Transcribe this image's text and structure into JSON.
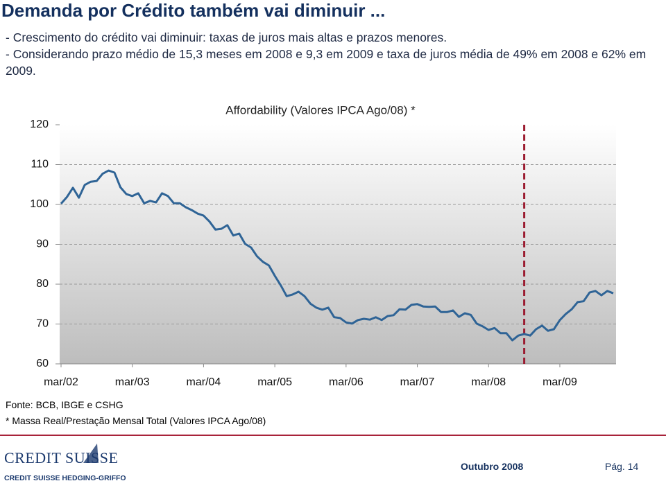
{
  "header": {
    "title": "Demanda por Crédito também vai diminuir ..."
  },
  "bullets": [
    "- Crescimento do crédito vai diminuir: taxas de juros mais altas e prazos menores.",
    "- Considerando prazo médio de 15,3 meses em 2008 e 9,3 em 2009 e taxa de juros média de 49% em 2008 e 62% em 2009."
  ],
  "chart_data": {
    "type": "line",
    "title": "Affordability (Valores IPCA Ago/08) *",
    "categories": [
      "mar/02",
      null,
      null,
      null,
      null,
      null,
      null,
      null,
      null,
      null,
      null,
      null,
      "mar/03",
      null,
      null,
      null,
      null,
      null,
      null,
      null,
      null,
      null,
      null,
      null,
      "mar/04",
      null,
      null,
      null,
      null,
      null,
      null,
      null,
      null,
      null,
      null,
      null,
      "mar/05",
      null,
      null,
      null,
      null,
      null,
      null,
      null,
      null,
      null,
      null,
      null,
      "mar/06",
      null,
      null,
      null,
      null,
      null,
      null,
      null,
      null,
      null,
      null,
      null,
      "mar/07",
      null,
      null,
      null,
      null,
      null,
      null,
      null,
      null,
      null,
      null,
      null,
      "mar/08",
      null,
      null,
      null,
      null,
      null,
      null,
      null,
      null,
      null,
      null,
      null,
      "mar/09",
      null,
      null,
      null,
      null,
      null,
      null,
      null,
      null,
      null
    ],
    "series": [
      {
        "name": "Affordability",
        "color": "#2f6496",
        "values": [
          100.2,
          101.9,
          104.2,
          101.7,
          104.9,
          105.7,
          105.9,
          107.7,
          108.5,
          108.0,
          104.3,
          102.6,
          102.1,
          102.8,
          100.3,
          100.9,
          100.5,
          102.8,
          102.1,
          100.3,
          100.3,
          99.3,
          98.6,
          97.7,
          97.2,
          95.7,
          93.7,
          93.9,
          94.8,
          92.2,
          92.7,
          90.1,
          89.2,
          87.0,
          85.6,
          84.7,
          82.1,
          79.7,
          77.0,
          77.4,
          78.1,
          77.0,
          75.1,
          74.1,
          73.6,
          74.1,
          71.7,
          71.5,
          70.4,
          70.1,
          71.0,
          71.3,
          71.1,
          71.7,
          71.0,
          72.0,
          72.2,
          73.7,
          73.6,
          74.8,
          75.0,
          74.4,
          74.3,
          74.4,
          73.0,
          73.0,
          73.4,
          71.8,
          72.7,
          72.3,
          70.1,
          69.4,
          68.5,
          69.0,
          67.7,
          67.7,
          65.9,
          67.1,
          67.5,
          67.1,
          68.7,
          69.6,
          68.3,
          68.7,
          71.0,
          72.5,
          73.7,
          75.5,
          75.7,
          77.9,
          78.3,
          77.2,
          78.3,
          77.7
        ]
      }
    ],
    "ylim": [
      60,
      120
    ],
    "yticks": [
      60,
      70,
      80,
      90,
      100,
      110,
      120
    ],
    "grid": true,
    "marker_index": 78,
    "marker_color": "#9b1b30"
  },
  "notes": {
    "source": "Fonte: BCB, IBGE e CSHG",
    "footnote": "* Massa Real/Prestação Mensal Total (Valores IPCA Ago/08)"
  },
  "footer": {
    "logo": "CREDIT SUISSE",
    "company": "CREDIT SUISSE HEDGING-GRIFFO",
    "date": "Outubro 2008",
    "page": "Pág. 14"
  }
}
